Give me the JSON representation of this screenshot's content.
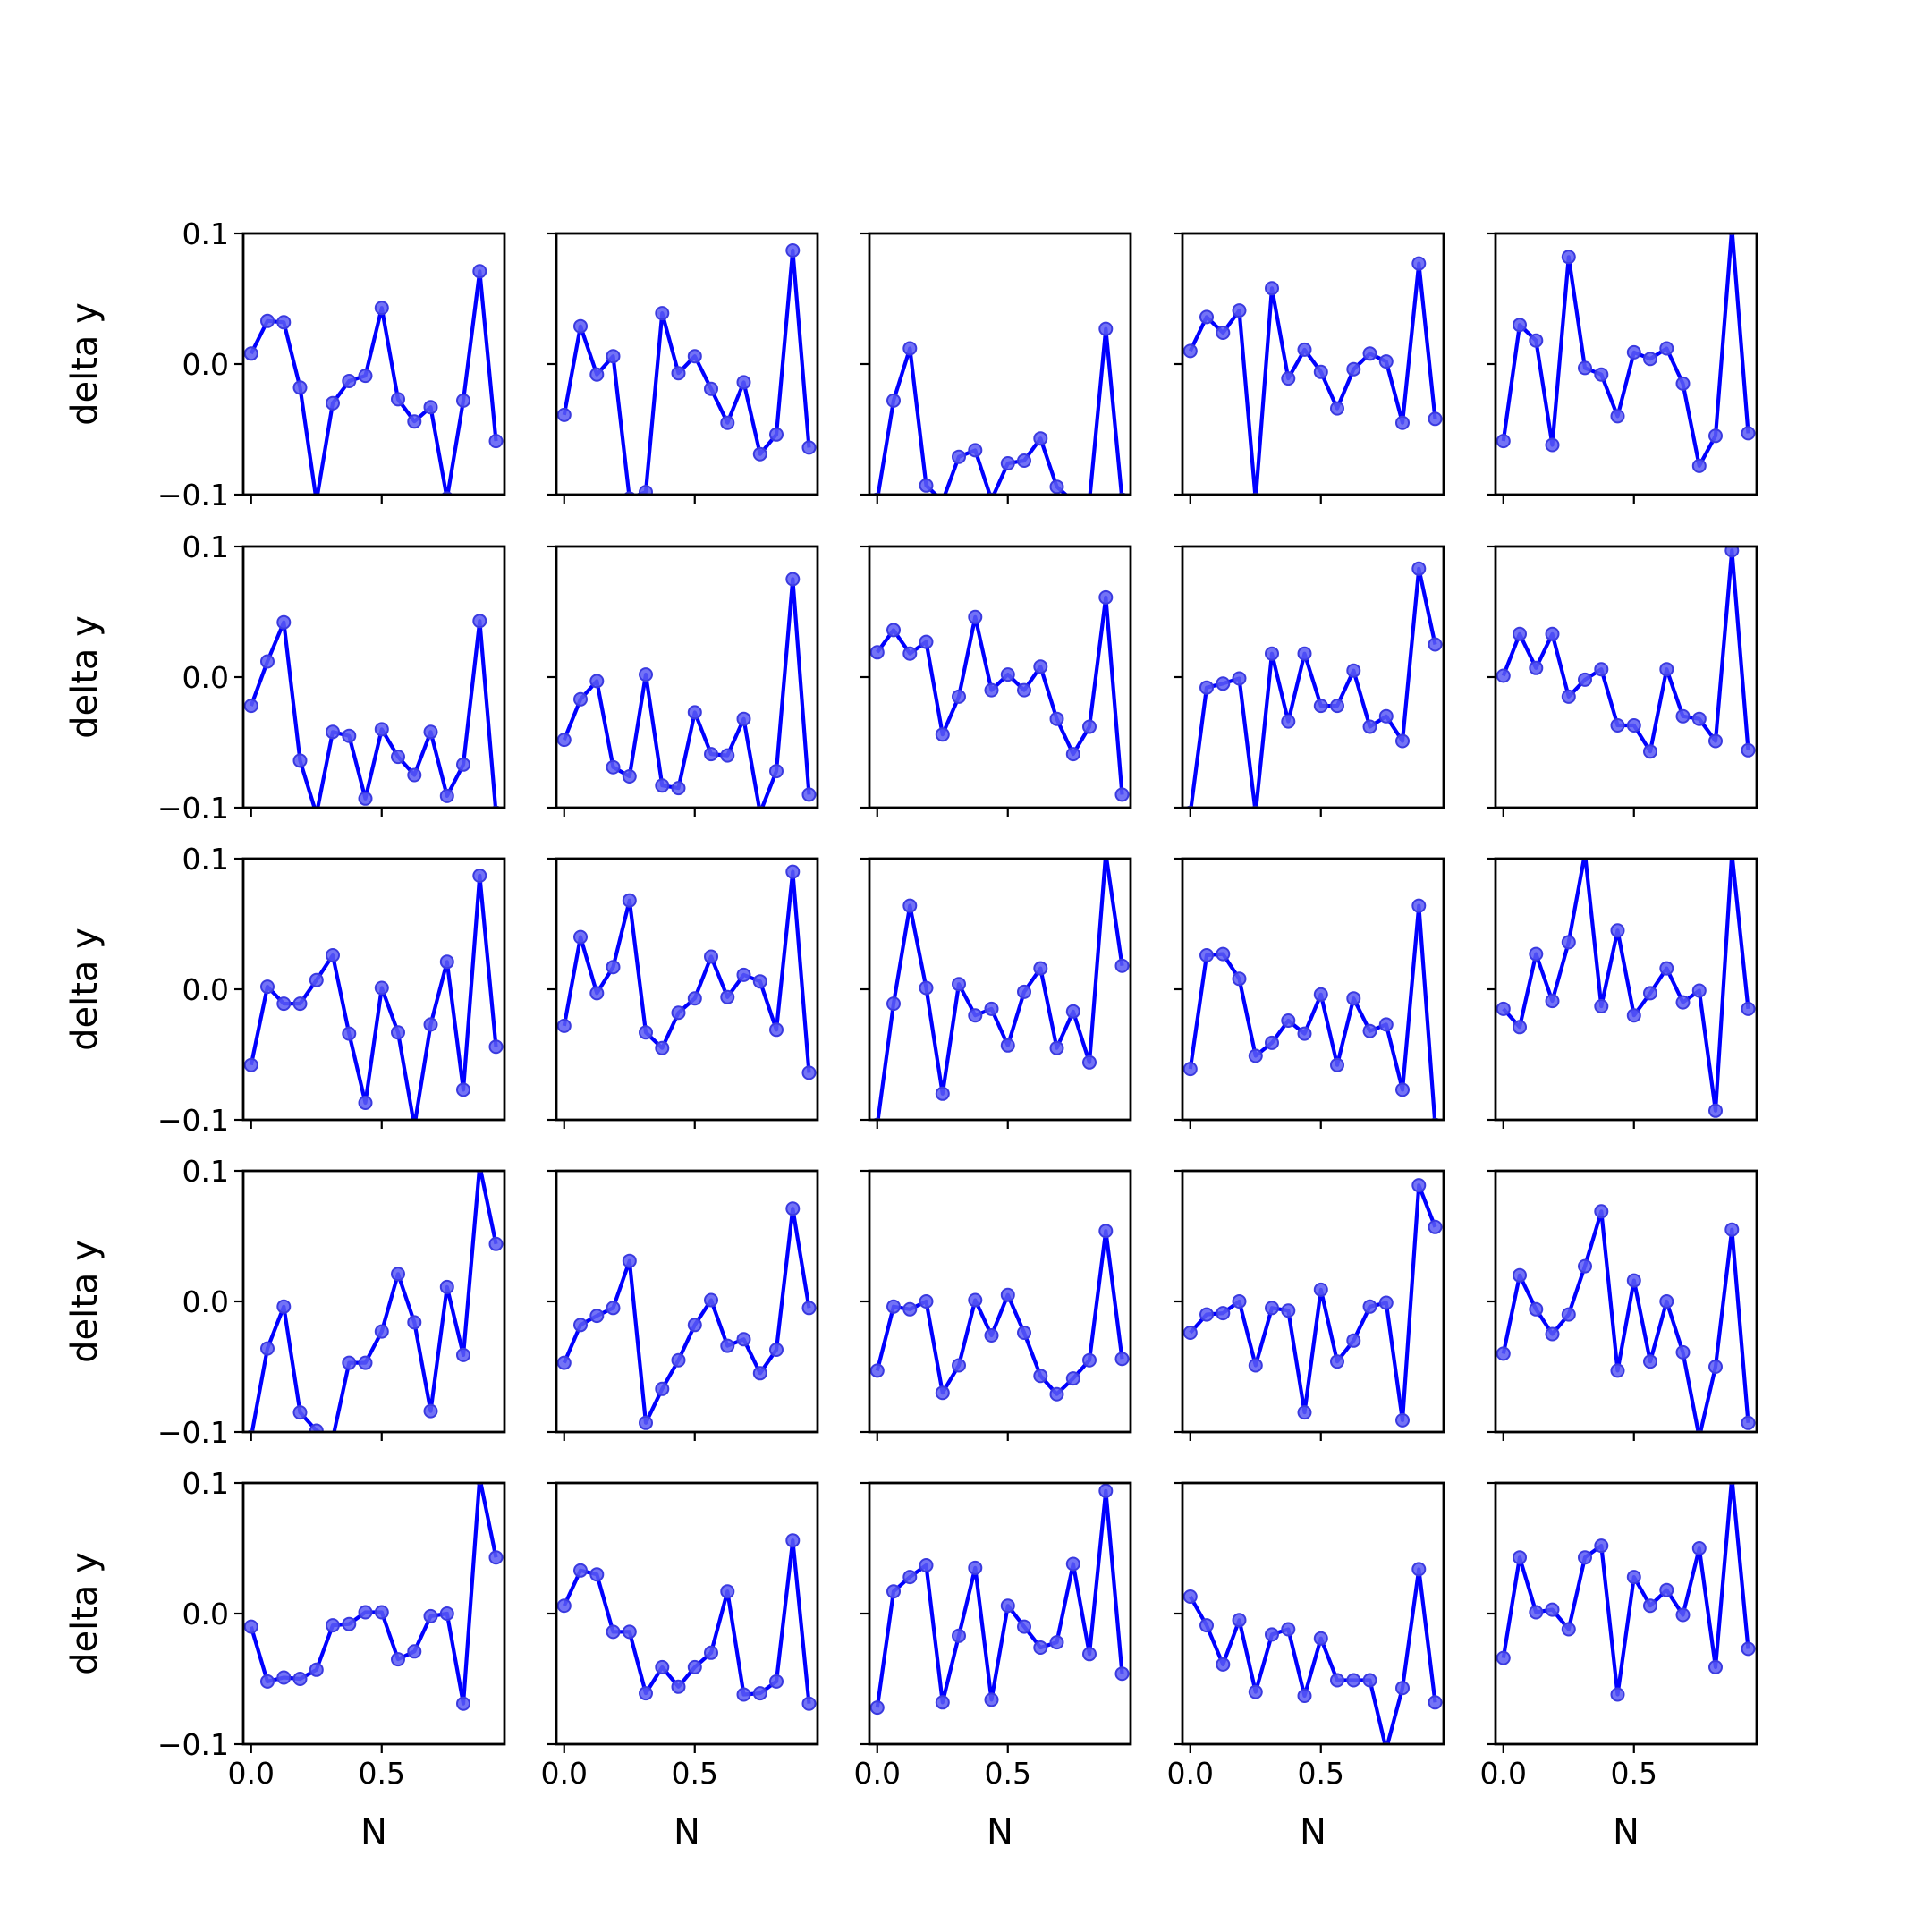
{
  "chart_data": {
    "type": "line",
    "layout": "5x5 small multiples, shared axes",
    "xlabel": "N",
    "ylabel": "delta y",
    "xlim": [
      -0.03,
      0.97
    ],
    "ylim": [
      -0.1,
      0.1
    ],
    "xticks": [
      0.0,
      0.5
    ],
    "xtick_labels": [
      "0.0",
      "0.5"
    ],
    "yticks": [
      -0.1,
      0.0,
      0.1
    ],
    "ytick_labels": [
      "−0.1",
      "0.0",
      "0.1"
    ],
    "x": [
      0.0,
      0.0625,
      0.125,
      0.1875,
      0.25,
      0.3125,
      0.375,
      0.4375,
      0.5,
      0.5625,
      0.625,
      0.6875,
      0.75,
      0.8125,
      0.875,
      0.9375
    ],
    "line_color": "#0000ff",
    "marker_color": "#5b5bf5",
    "panels": [
      {
        "row": 1,
        "col": 1,
        "values": [
          0.008,
          0.033,
          0.032,
          -0.018,
          -0.105,
          -0.03,
          -0.013,
          -0.009,
          0.043,
          -0.027,
          -0.044,
          -0.033,
          -0.103,
          -0.028,
          0.071,
          -0.059
        ]
      },
      {
        "row": 1,
        "col": 2,
        "values": [
          -0.039,
          0.029,
          -0.008,
          0.006,
          -0.103,
          -0.098,
          0.039,
          -0.007,
          0.006,
          -0.019,
          -0.045,
          -0.014,
          -0.069,
          -0.054,
          0.087,
          -0.064
        ]
      },
      {
        "row": 1,
        "col": 3,
        "values": [
          -0.104,
          -0.028,
          0.012,
          -0.093,
          -0.105,
          -0.071,
          -0.066,
          -0.104,
          -0.076,
          -0.074,
          -0.057,
          -0.094,
          -0.105,
          -0.105,
          0.027,
          -0.104
        ]
      },
      {
        "row": 1,
        "col": 4,
        "values": [
          0.01,
          0.036,
          0.024,
          0.041,
          -0.104,
          0.058,
          -0.011,
          0.011,
          -0.006,
          -0.034,
          -0.004,
          0.008,
          0.002,
          -0.045,
          0.077,
          -0.042
        ]
      },
      {
        "row": 1,
        "col": 5,
        "values": [
          -0.059,
          0.03,
          0.018,
          -0.062,
          0.082,
          -0.003,
          -0.008,
          -0.04,
          0.009,
          0.004,
          0.012,
          -0.015,
          -0.078,
          -0.055,
          0.104,
          -0.053
        ]
      },
      {
        "row": 2,
        "col": 1,
        "values": [
          -0.022,
          0.012,
          0.042,
          -0.064,
          -0.105,
          -0.042,
          -0.045,
          -0.093,
          -0.04,
          -0.061,
          -0.075,
          -0.042,
          -0.091,
          -0.067,
          0.043,
          -0.104
        ]
      },
      {
        "row": 2,
        "col": 2,
        "values": [
          -0.048,
          -0.017,
          -0.003,
          -0.069,
          -0.076,
          0.002,
          -0.083,
          -0.085,
          -0.027,
          -0.059,
          -0.06,
          -0.032,
          -0.104,
          -0.072,
          0.075,
          -0.09
        ]
      },
      {
        "row": 2,
        "col": 3,
        "values": [
          0.019,
          0.036,
          0.018,
          0.027,
          -0.044,
          -0.015,
          0.046,
          -0.01,
          0.002,
          -0.01,
          0.008,
          -0.032,
          -0.059,
          -0.038,
          0.061,
          -0.09
        ]
      },
      {
        "row": 2,
        "col": 4,
        "values": [
          -0.104,
          -0.008,
          -0.005,
          -0.001,
          -0.104,
          0.018,
          -0.034,
          0.018,
          -0.022,
          -0.022,
          0.005,
          -0.038,
          -0.03,
          -0.049,
          0.083,
          0.025
        ]
      },
      {
        "row": 2,
        "col": 5,
        "values": [
          0.001,
          0.033,
          0.007,
          0.033,
          -0.015,
          -0.002,
          0.006,
          -0.037,
          -0.037,
          -0.057,
          0.006,
          -0.03,
          -0.032,
          -0.049,
          0.097,
          -0.056
        ]
      },
      {
        "row": 3,
        "col": 1,
        "values": [
          -0.058,
          0.002,
          -0.011,
          -0.011,
          0.007,
          0.026,
          -0.034,
          -0.087,
          0.001,
          -0.033,
          -0.105,
          -0.027,
          0.021,
          -0.077,
          0.087,
          -0.044
        ]
      },
      {
        "row": 3,
        "col": 2,
        "values": [
          -0.028,
          0.04,
          -0.003,
          0.017,
          0.068,
          -0.033,
          -0.045,
          -0.018,
          -0.007,
          0.025,
          -0.006,
          0.011,
          0.006,
          -0.031,
          0.09,
          -0.064
        ]
      },
      {
        "row": 3,
        "col": 3,
        "values": [
          -0.104,
          -0.011,
          0.064,
          0.001,
          -0.08,
          0.004,
          -0.02,
          -0.015,
          -0.043,
          -0.002,
          0.016,
          -0.045,
          -0.017,
          -0.056,
          0.104,
          0.018
        ]
      },
      {
        "row": 3,
        "col": 4,
        "values": [
          -0.061,
          0.026,
          0.027,
          0.008,
          -0.051,
          -0.041,
          -0.024,
          -0.034,
          -0.004,
          -0.058,
          -0.007,
          -0.032,
          -0.027,
          -0.077,
          0.064,
          -0.104
        ]
      },
      {
        "row": 3,
        "col": 5,
        "values": [
          -0.015,
          -0.029,
          0.027,
          -0.009,
          0.036,
          0.104,
          -0.013,
          0.045,
          -0.02,
          -0.003,
          0.016,
          -0.01,
          -0.001,
          -0.093,
          0.104,
          -0.015
        ]
      },
      {
        "row": 4,
        "col": 1,
        "values": [
          -0.104,
          -0.036,
          -0.004,
          -0.085,
          -0.099,
          -0.105,
          -0.047,
          -0.047,
          -0.023,
          0.021,
          -0.016,
          -0.084,
          0.011,
          -0.041,
          0.104,
          0.044
        ]
      },
      {
        "row": 4,
        "col": 2,
        "values": [
          -0.047,
          -0.018,
          -0.011,
          -0.005,
          0.031,
          -0.093,
          -0.067,
          -0.045,
          -0.018,
          0.001,
          -0.034,
          -0.029,
          -0.055,
          -0.037,
          0.071,
          -0.005
        ]
      },
      {
        "row": 4,
        "col": 3,
        "values": [
          -0.053,
          -0.004,
          -0.006,
          0.0,
          -0.07,
          -0.049,
          0.001,
          -0.026,
          0.005,
          -0.024,
          -0.057,
          -0.071,
          -0.059,
          -0.045,
          0.054,
          -0.044
        ]
      },
      {
        "row": 4,
        "col": 4,
        "values": [
          -0.024,
          -0.01,
          -0.009,
          0.0,
          -0.049,
          -0.005,
          -0.007,
          -0.085,
          0.009,
          -0.046,
          -0.03,
          -0.004,
          -0.001,
          -0.091,
          0.089,
          0.057
        ]
      },
      {
        "row": 4,
        "col": 5,
        "values": [
          -0.04,
          0.02,
          -0.006,
          -0.025,
          -0.01,
          0.027,
          0.069,
          -0.053,
          0.016,
          -0.046,
          0.0,
          -0.039,
          -0.104,
          -0.05,
          0.055,
          -0.093
        ]
      },
      {
        "row": 5,
        "col": 1,
        "values": [
          -0.01,
          -0.052,
          -0.049,
          -0.05,
          -0.043,
          -0.009,
          -0.008,
          0.001,
          0.001,
          -0.035,
          -0.029,
          -0.002,
          0.0,
          -0.069,
          0.104,
          0.043
        ]
      },
      {
        "row": 5,
        "col": 2,
        "values": [
          0.006,
          0.033,
          0.03,
          -0.014,
          -0.014,
          -0.061,
          -0.041,
          -0.056,
          -0.041,
          -0.03,
          0.017,
          -0.062,
          -0.061,
          -0.052,
          0.056,
          -0.069
        ]
      },
      {
        "row": 5,
        "col": 3,
        "values": [
          -0.072,
          0.017,
          0.028,
          0.037,
          -0.068,
          -0.017,
          0.035,
          -0.066,
          0.006,
          -0.01,
          -0.026,
          -0.022,
          0.038,
          -0.031,
          0.094,
          -0.046
        ]
      },
      {
        "row": 5,
        "col": 4,
        "values": [
          0.013,
          -0.009,
          -0.039,
          -0.005,
          -0.06,
          -0.016,
          -0.012,
          -0.063,
          -0.019,
          -0.051,
          -0.051,
          -0.051,
          -0.104,
          -0.057,
          0.034,
          -0.068
        ]
      },
      {
        "row": 5,
        "col": 5,
        "values": [
          -0.034,
          0.043,
          0.001,
          0.003,
          -0.012,
          0.043,
          0.052,
          -0.062,
          0.028,
          0.006,
          0.018,
          -0.001,
          0.05,
          -0.041,
          0.104,
          -0.027
        ]
      }
    ]
  }
}
